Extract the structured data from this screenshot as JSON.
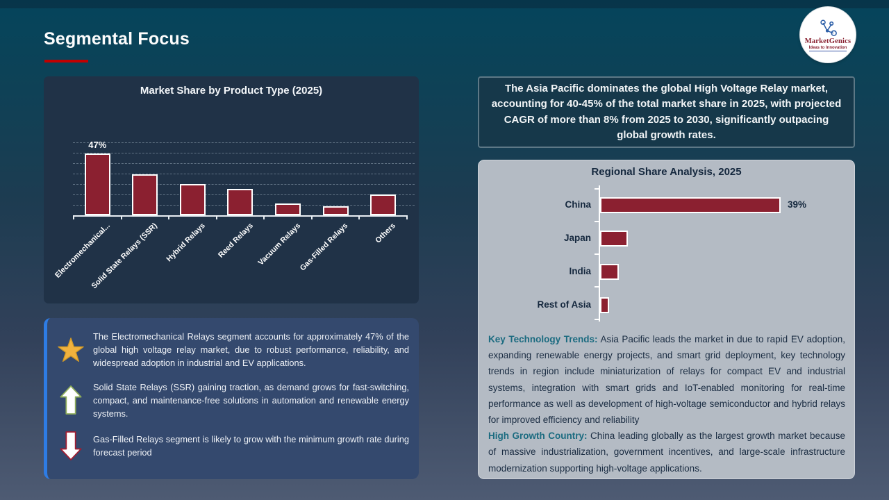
{
  "slide": {
    "title": "Segmental Focus"
  },
  "logo": {
    "name": "MarketGenics",
    "tagline": "Ideas to Innovation"
  },
  "headline": {
    "text": "The Asia Pacific dominates the global High Voltage Relay market, accounting for 40-45% of the total market share in 2025, with projected CAGR of more than 8% from 2025 to 2030, significantly outpacing global growth rates."
  },
  "insights": {
    "items": [
      {
        "icon": "star-icon",
        "text": "The Electromechanical Relays segment accounts for approximately 47% of the global high voltage relay market, due to robust performance, reliability, and widespread adoption in industrial and EV applications."
      },
      {
        "icon": "arrow-up-icon",
        "text": "Solid State Relays (SSR) gaining traction, as demand grows for fast-switching, compact, and maintenance-free solutions in automation and renewable energy systems."
      },
      {
        "icon": "arrow-down-icon",
        "text": "Gas-Filled Relays segment is likely to grow with the minimum growth rate during forecast period"
      }
    ]
  },
  "regional_text": {
    "paragraphs": [
      {
        "lead": "Key Technology Trends:",
        "text": " Asia Pacific leads the market in due to rapid EV adoption, expanding renewable energy projects, and smart grid deployment, key technology trends in region include miniaturization of relays for compact EV and industrial systems, integration with smart grids and IoT-enabled monitoring for real-time performance as well as development of high-voltage semiconductor and hybrid relays for improved efficiency and reliability"
      },
      {
        "lead": "High Growth Country:",
        "text": " China leading globally as the largest growth market because of massive industrialization, government incentives, and large-scale infrastructure modernization supporting high-voltage applications."
      }
    ]
  },
  "chart_data": [
    {
      "type": "bar",
      "orientation": "vertical",
      "title": "Market Share by Product Type (2025)",
      "categories": [
        "Electromechanical...",
        "Solid State Relays (SSR)",
        "Hybrid Relays",
        "Reed Relays",
        "Vacuum Relays",
        "Gas-Filled Relays",
        "Others"
      ],
      "values": [
        47,
        31,
        24,
        20,
        9,
        7,
        16
      ],
      "data_labels": [
        "47%",
        "",
        "",
        "",
        "",
        "",
        ""
      ],
      "xlabel": "",
      "ylabel": "",
      "ylim": [
        0,
        55
      ],
      "grid": true,
      "legend": false,
      "bar_color": "#8b2030",
      "note": "Only the first bar carries a printed data label; remaining values estimated from bar heights."
    },
    {
      "type": "bar",
      "orientation": "horizontal",
      "title": "Regional Share Analysis, 2025",
      "categories": [
        "China",
        "Japan",
        "India",
        "Rest of Asia"
      ],
      "values": [
        39,
        6,
        4,
        2
      ],
      "data_labels": [
        "39%",
        "",
        "",
        ""
      ],
      "xlabel": "",
      "ylabel": "",
      "xlim": [
        0,
        42
      ],
      "grid": false,
      "legend": false,
      "bar_color": "#8b2030",
      "note": "Only the China bar carries a printed data label; remaining values estimated from bar lengths."
    }
  ],
  "colors": {
    "bar_fill": "#8b2030",
    "bar_border": "#ffffff",
    "accent_red": "#c00000",
    "accent_blue_stripe": "#2e7ce4",
    "teal_lead_text": "#1b6b80",
    "panel_navy": "#203247",
    "panel_gray": "#b4bbc4",
    "insights_blue": "#34496e",
    "headline_navy": "#16384a"
  }
}
